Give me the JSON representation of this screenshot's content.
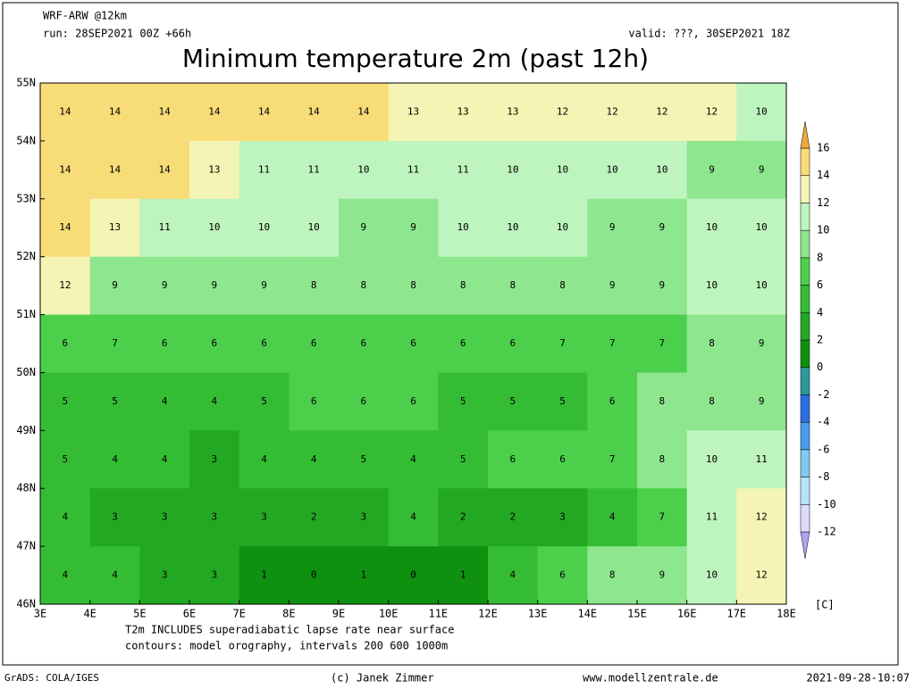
{
  "header": {
    "model": "WRF-ARW @12km",
    "run": "run: 28SEP2021 00Z +66h",
    "valid": "valid: ???, 30SEP2021 18Z",
    "title": "Minimum temperature 2m (past 12h)"
  },
  "map": {
    "lat_labels": [
      "55N",
      "54N",
      "53N",
      "52N",
      "51N",
      "50N",
      "49N",
      "48N",
      "47N",
      "46N"
    ],
    "lon_labels": [
      "3E",
      "4E",
      "5E",
      "6E",
      "7E",
      "8E",
      "9E",
      "10E",
      "11E",
      "12E",
      "13E",
      "14E",
      "15E",
      "16E",
      "17E",
      "18E"
    ],
    "grid": [
      [
        14,
        14,
        14,
        14,
        14,
        14,
        14,
        13,
        13,
        13,
        12,
        12,
        12,
        12,
        10
      ],
      [
        14,
        14,
        14,
        13,
        11,
        11,
        10,
        11,
        11,
        10,
        10,
        10,
        10,
        9,
        9
      ],
      [
        14,
        13,
        11,
        10,
        10,
        10,
        9,
        9,
        10,
        10,
        10,
        9,
        9,
        10,
        10
      ],
      [
        12,
        9,
        9,
        9,
        9,
        8,
        8,
        8,
        8,
        8,
        8,
        9,
        9,
        10,
        10
      ],
      [
        6,
        7,
        6,
        6,
        6,
        6,
        6,
        6,
        6,
        6,
        7,
        7,
        7,
        8,
        9
      ],
      [
        5,
        5,
        4,
        4,
        5,
        6,
        6,
        6,
        5,
        5,
        5,
        6,
        8,
        8,
        9
      ],
      [
        5,
        4,
        4,
        3,
        4,
        4,
        5,
        4,
        5,
        6,
        6,
        7,
        8,
        10,
        11
      ],
      [
        4,
        3,
        3,
        3,
        3,
        2,
        3,
        4,
        2,
        2,
        3,
        4,
        7,
        11,
        12
      ],
      [
        4,
        4,
        3,
        3,
        1,
        0,
        1,
        0,
        1,
        4,
        6,
        8,
        9,
        10,
        12
      ]
    ]
  },
  "colorbar": {
    "ticks": [
      -12,
      -10,
      -8,
      -6,
      -4,
      -2,
      0,
      2,
      4,
      6,
      8,
      10,
      12,
      14,
      16
    ],
    "colors": [
      "#b4a0f0",
      "#dcdcfa",
      "#b4e4fa",
      "#82c8f0",
      "#4a9cea",
      "#2a6ee0",
      "#2a9a9a",
      "#109010",
      "#22a822",
      "#34bc34",
      "#4cd04c",
      "#8ee68e",
      "#bef4be",
      "#f4f4b4",
      "#f8dc78",
      "#f0a838"
    ],
    "unit": "[C]"
  },
  "notes": [
    "T2m INCLUDES superadiabatic lapse rate near surface",
    "contours: model orography, intervals 200 600 1000m"
  ],
  "footer": {
    "left": "GrADS: COLA/IGES",
    "center": "(c) Janek Zimmer",
    "right": "www.modellzentrale.de",
    "date": "2021-09-28-10:07"
  }
}
